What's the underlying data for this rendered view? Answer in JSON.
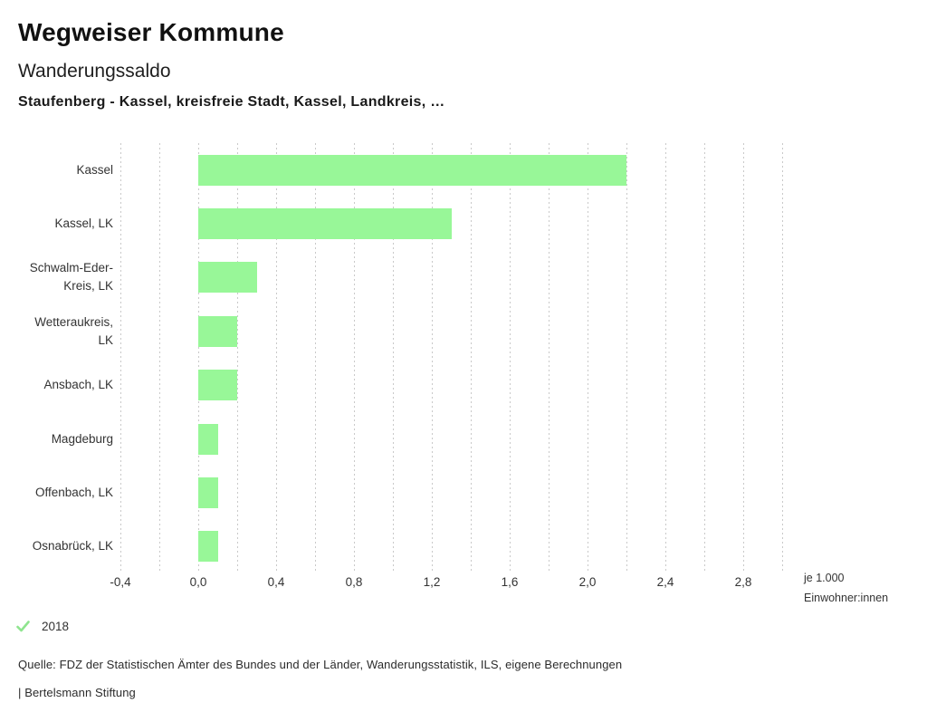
{
  "header": {
    "brand": "Wegweiser Kommune",
    "title": "Wanderungssaldo",
    "subtitle": "Staufenberg - Kassel, kreisfreie Stadt, Kassel, Landkreis, …"
  },
  "chart_data": {
    "type": "bar",
    "orientation": "horizontal",
    "title": "Wanderungssaldo",
    "categories": [
      "Kassel",
      "Kassel, LK",
      "Schwalm-Eder-Kreis, LK",
      "Wetteraukreis, LK",
      "Ansbach, LK",
      "Magdeburg",
      "Offenbach, LK",
      "Osnabrück, LK"
    ],
    "category_display_lines": [
      [
        "Kassel"
      ],
      [
        "Kassel, LK"
      ],
      [
        "Schwalm-Eder-",
        "Kreis, LK"
      ],
      [
        "Wetteraukreis,",
        "LK"
      ],
      [
        "Ansbach, LK"
      ],
      [
        "Magdeburg"
      ],
      [
        "Offenbach, LK"
      ],
      [
        "Osnabrück, LK"
      ]
    ],
    "series": [
      {
        "name": "2018",
        "values": [
          2.2,
          1.3,
          0.3,
          0.2,
          0.2,
          0.1,
          0.1,
          0.1
        ]
      }
    ],
    "xlim": [
      -0.4,
      3.0
    ],
    "gridline_step": 0.2,
    "grid": true,
    "x_ticks": [
      {
        "value": -0.4,
        "label": "-0,4"
      },
      {
        "value": 0.0,
        "label": "0,0"
      },
      {
        "value": 0.4,
        "label": "0,4"
      },
      {
        "value": 0.8,
        "label": "0,8"
      },
      {
        "value": 1.2,
        "label": "1,2"
      },
      {
        "value": 1.6,
        "label": "1,6"
      },
      {
        "value": 2.0,
        "label": "2,0"
      },
      {
        "value": 2.4,
        "label": "2,4"
      },
      {
        "value": 2.8,
        "label": "2,8"
      }
    ],
    "unit_label_lines": [
      "je 1.000",
      "Einwohner:innen"
    ],
    "bar_color": "#98f798",
    "gridline_color": "#c9c9c9"
  },
  "legend": {
    "items": [
      {
        "label": "2018",
        "checked": true,
        "check_color": "#8ee48e"
      }
    ]
  },
  "footer": {
    "source": "Quelle: FDZ der Statistischen Ämter des Bundes und der Länder, Wanderungsstatistik, ILS, eigene Berechnungen",
    "attribution": "| Bertelsmann Stiftung"
  }
}
